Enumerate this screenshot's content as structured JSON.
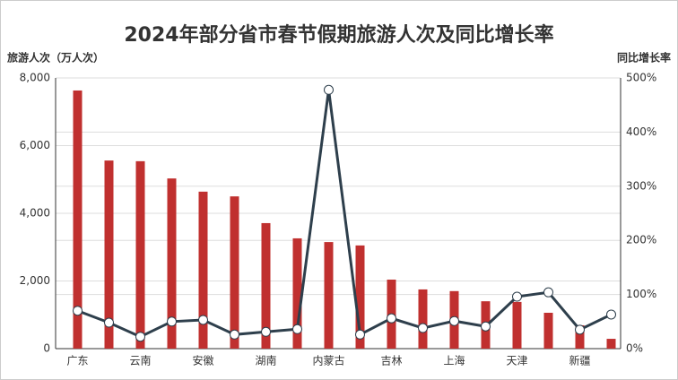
{
  "chart_data": {
    "type": "bar_line",
    "title": "2024年部分省市春节假期旅游人次及同比增长率",
    "y_label": "旅游人次（万人次）",
    "y2_label": "同比增长率",
    "categories": [
      "广东",
      null,
      "云南",
      null,
      "安徽",
      null,
      "湖南",
      null,
      "内蒙古",
      null,
      "吉林",
      null,
      "上海",
      null,
      "天津",
      null,
      "新疆",
      null
    ],
    "series": [
      {
        "type": "bar",
        "color": "#c0302f",
        "values": [
          7630,
          5560,
          5540,
          5030,
          4640,
          4500,
          3710,
          3260,
          3150,
          3050,
          2040,
          1750,
          1700,
          1400,
          1380,
          1060,
          690,
          290
        ]
      },
      {
        "type": "line",
        "axis": "y2",
        "color": "#2e3f4c",
        "values": [
          70,
          48,
          22,
          50,
          53,
          26,
          31,
          36,
          478,
          26,
          56,
          38,
          51,
          41,
          96,
          104,
          35,
          63
        ]
      }
    ],
    "ylim": [
      0,
      8000
    ],
    "yticks": [
      0,
      {
        "value": 2000,
        "label": "2,000"
      },
      {
        "value": 4000,
        "label": "4,000"
      },
      {
        "value": 6000,
        "label": "6,000"
      },
      {
        "value": 8000,
        "label": "8,000"
      }
    ],
    "y2lim": [
      0,
      500
    ],
    "y2ticks": [
      {
        "value": 0,
        "label": "0%"
      },
      {
        "value": 100,
        "label": "100%"
      },
      {
        "value": 200,
        "label": "200%"
      },
      {
        "value": 300,
        "label": "300%"
      },
      {
        "value": 400,
        "label": "400%"
      },
      {
        "value": 500,
        "label": "500%"
      }
    ],
    "grid": true
  }
}
